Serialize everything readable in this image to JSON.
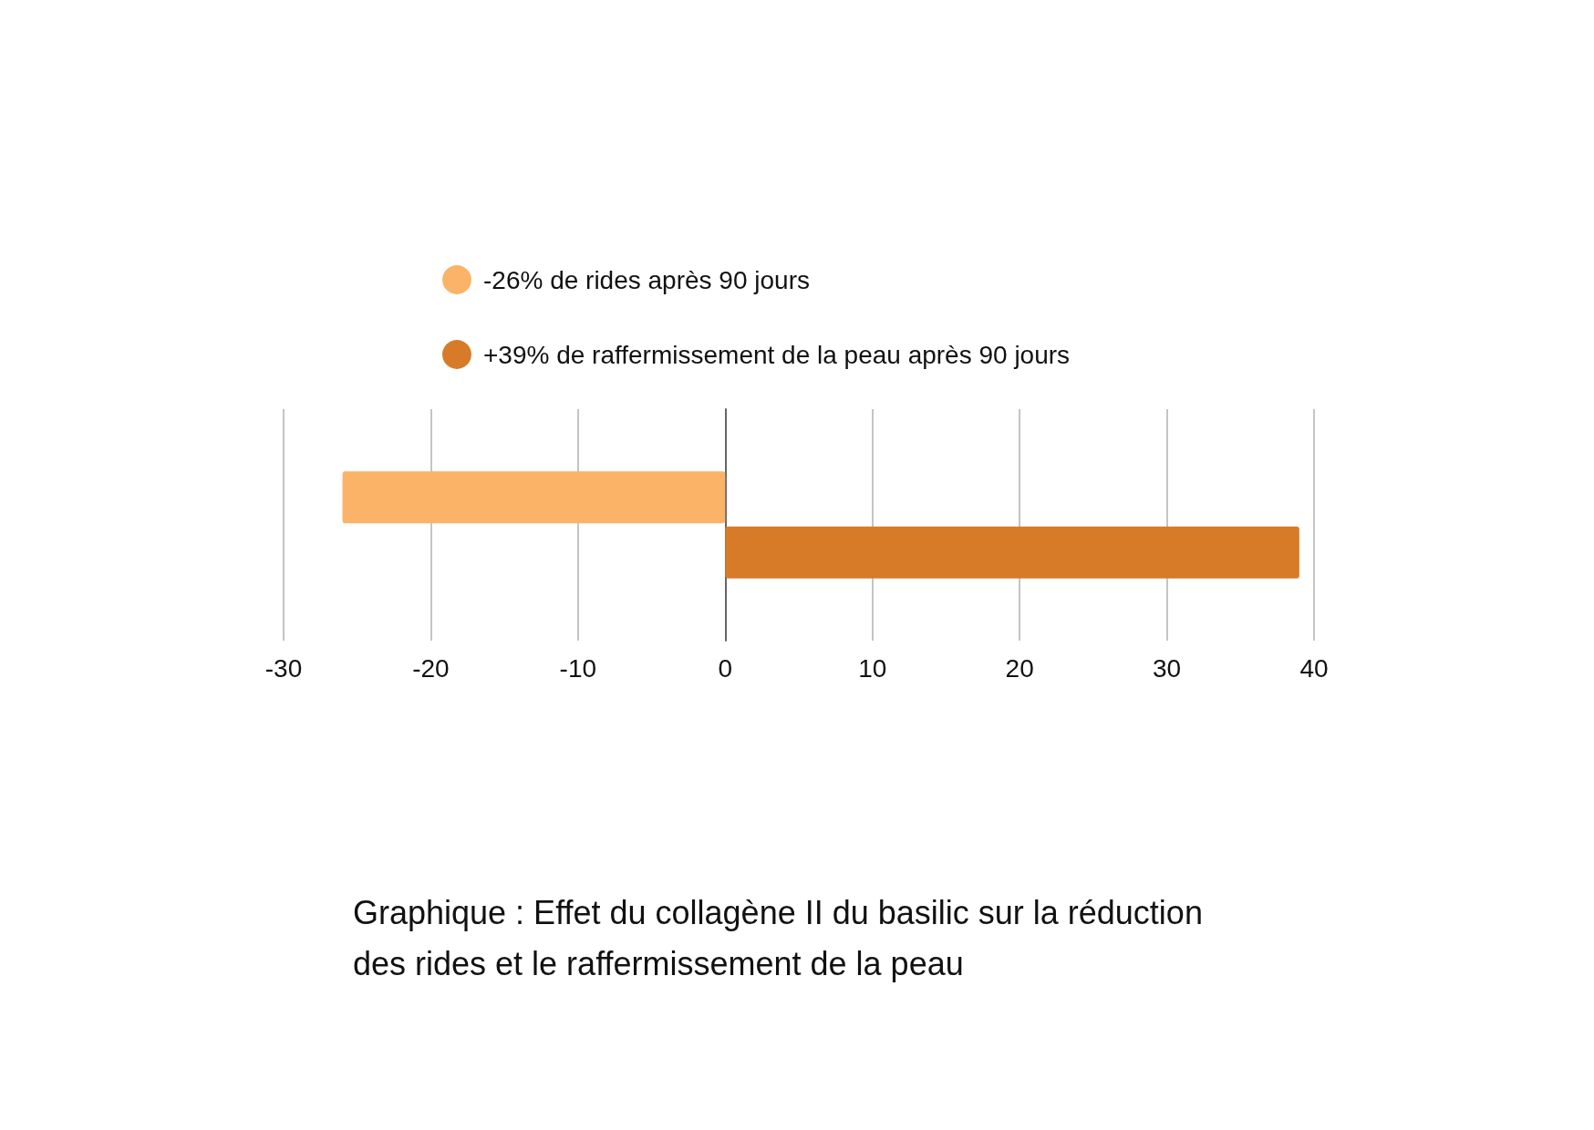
{
  "chart_data": {
    "type": "bar",
    "orientation": "horizontal",
    "categories": [
      null
    ],
    "series": [
      {
        "name": "-26% de rides après 90 jours",
        "color": "#fab367",
        "values": [
          -26
        ]
      },
      {
        "name": "+39% de raffermissement de la peau après 90 jours",
        "color": "#d77b29",
        "values": [
          39
        ]
      }
    ],
    "xlim": [
      -30,
      40
    ],
    "xticks": [
      -30,
      -20,
      -10,
      0,
      10,
      20,
      30,
      40
    ],
    "grid": "x",
    "legend": "top",
    "annotations": [
      "Graphique : Effet du collagène II du basilic sur la réduction des rides et le raffermissement de la peau"
    ]
  }
}
